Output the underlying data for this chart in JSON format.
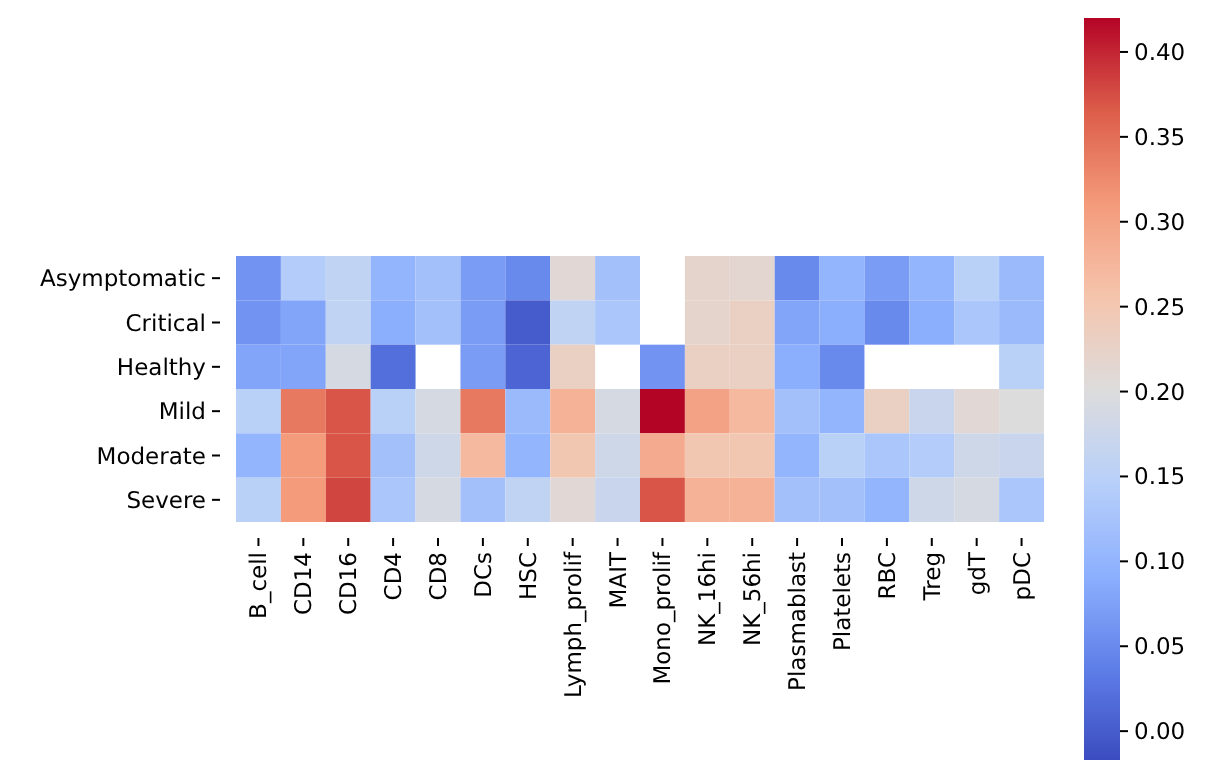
{
  "chart_data": {
    "type": "heatmap",
    "categories": [
      "B_cell",
      "CD14",
      "CD16",
      "CD4",
      "CD8",
      "DCs",
      "HSC",
      "Lymph_prolif",
      "MAIT",
      "Mono_prolif",
      "NK_16hi",
      "NK_56hi",
      "Plasmablast",
      "Platelets",
      "RBC",
      "Treg",
      "gdT",
      "pDC"
    ],
    "y_categories": [
      "Asymptomatic",
      "Critical",
      "Healthy",
      "Mild",
      "Moderate",
      "Severe"
    ],
    "cells": [
      [
        0.06,
        0.14,
        0.16,
        0.1,
        0.12,
        0.07,
        0.05,
        0.21,
        0.12,
        null,
        0.22,
        0.215,
        0.05,
        0.1,
        0.07,
        0.1,
        0.15,
        0.11
      ],
      [
        0.06,
        0.08,
        0.16,
        0.09,
        0.12,
        0.07,
        0.0,
        0.16,
        0.13,
        null,
        0.22,
        0.23,
        0.08,
        0.09,
        0.05,
        0.09,
        0.13,
        0.11
      ],
      [
        0.08,
        0.08,
        0.19,
        0.02,
        null,
        0.07,
        0.01,
        0.23,
        null,
        0.06,
        0.23,
        0.23,
        0.09,
        0.05,
        null,
        null,
        null,
        0.15
      ],
      [
        0.15,
        0.34,
        0.37,
        0.15,
        0.19,
        0.34,
        0.11,
        0.28,
        0.19,
        0.42,
        0.3,
        0.27,
        0.12,
        0.1,
        0.23,
        0.17,
        0.21,
        0.2
      ],
      [
        0.1,
        0.31,
        0.37,
        0.12,
        0.18,
        0.27,
        0.1,
        0.25,
        0.18,
        0.29,
        0.25,
        0.25,
        0.1,
        0.15,
        0.13,
        0.14,
        0.18,
        0.17
      ],
      [
        0.15,
        0.31,
        0.38,
        0.13,
        0.19,
        0.12,
        0.16,
        0.21,
        0.17,
        0.37,
        0.28,
        0.28,
        0.12,
        0.12,
        0.1,
        0.18,
        0.19,
        0.13
      ]
    ],
    "clim": [
      -0.017,
      0.42
    ],
    "cticks": [
      {
        "value": 0,
        "label": "0.00"
      },
      {
        "value": 0.05,
        "label": "0.05"
      },
      {
        "value": 0.1,
        "label": "0.10"
      },
      {
        "value": 0.15,
        "label": "0.15"
      },
      {
        "value": 0.2,
        "label": "0.20"
      },
      {
        "value": 0.25,
        "label": "0.25"
      },
      {
        "value": 0.3,
        "label": "0.30"
      },
      {
        "value": 0.35,
        "label": "0.35"
      },
      {
        "value": 0.4,
        "label": "0.40"
      }
    ]
  }
}
